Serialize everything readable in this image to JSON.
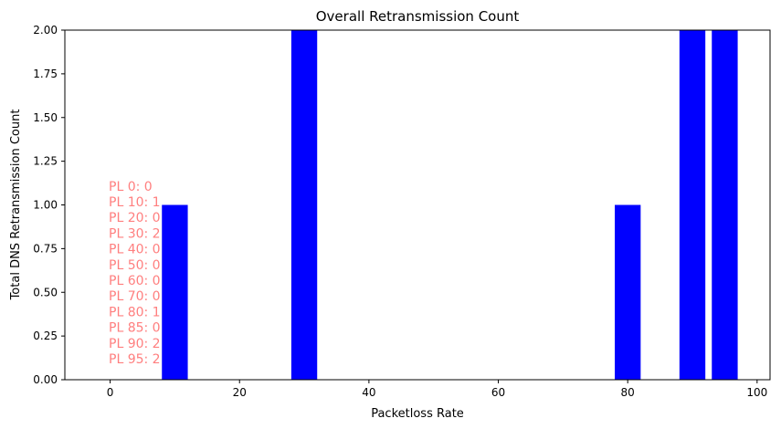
{
  "chart_data": {
    "type": "bar",
    "title": "Overall Retransmission Count",
    "xlabel": "Packetloss Rate",
    "ylabel": "Total DNS Retransmission Count",
    "x": [
      0,
      10,
      20,
      30,
      40,
      50,
      60,
      70,
      80,
      85,
      90,
      95
    ],
    "values": [
      0,
      1,
      0,
      2,
      0,
      0,
      0,
      0,
      1,
      0,
      2,
      2
    ],
    "xlim": [
      -7,
      102
    ],
    "ylim": [
      0,
      2
    ],
    "x_ticks": [
      "0",
      "20",
      "40",
      "60",
      "80",
      "100"
    ],
    "y_ticks": [
      "0.00",
      "0.25",
      "0.50",
      "0.75",
      "1.00",
      "1.25",
      "1.50",
      "1.75",
      "2.00"
    ],
    "bar_color": "#0000ff",
    "annotation_color": "#ff7f7f",
    "grid": false,
    "annotations": [
      "PL 0: 0",
      "PL 10: 1",
      "PL 20: 0",
      "PL 30: 2",
      "PL 40: 0",
      "PL 50: 0",
      "PL 60: 0",
      "PL 70: 0",
      "PL 80: 1",
      "PL 85: 0",
      "PL 90: 2",
      "PL 95: 2"
    ]
  }
}
